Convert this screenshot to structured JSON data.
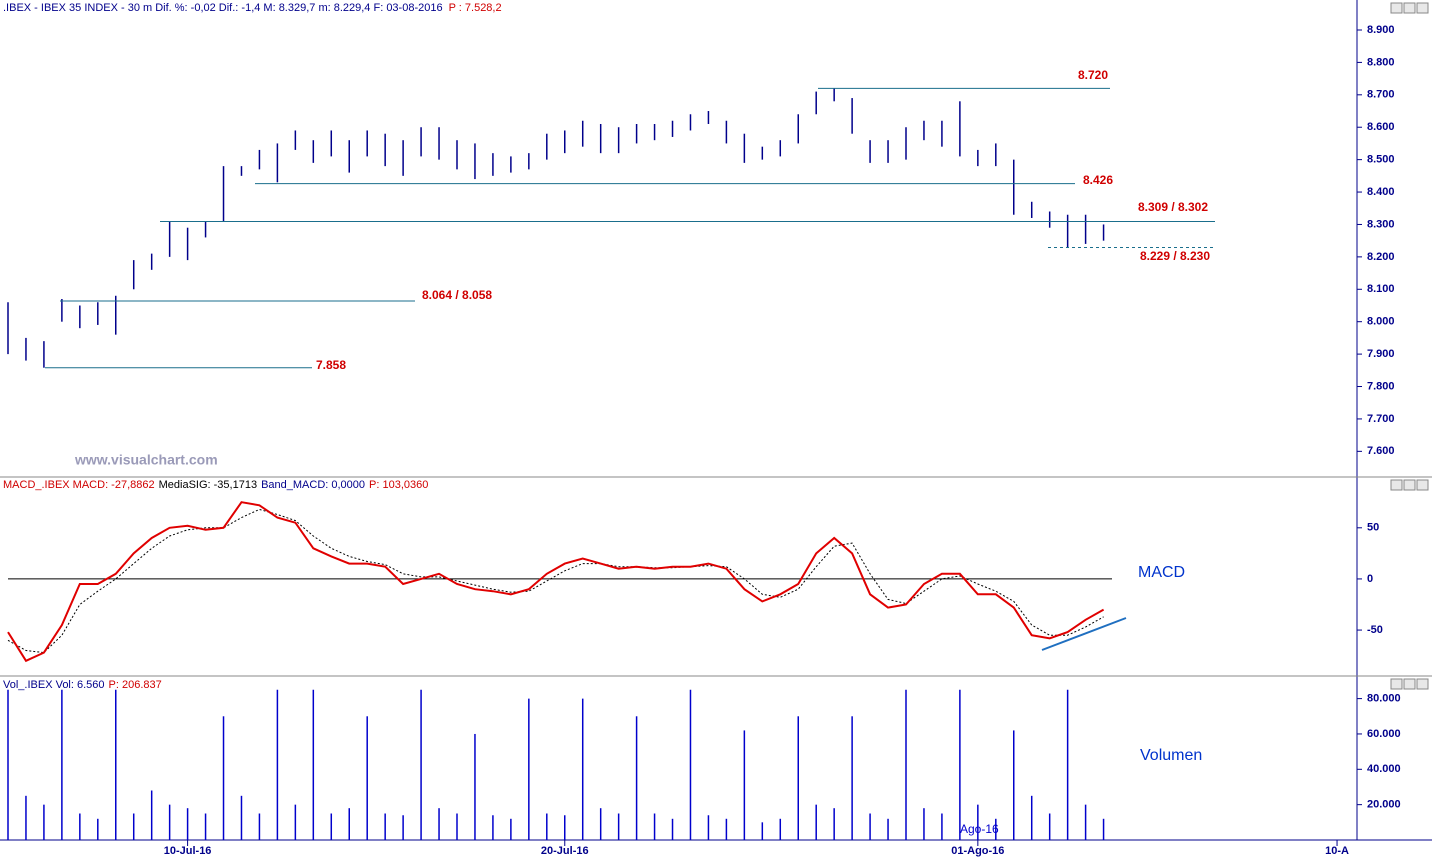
{
  "chart_data": [
    {
      "type": "ohlc",
      "title": ".IBEX - IBEX 35 INDEX -  30 m  Dif. %: -0,02  Dif.: -1,4  M: 8.329,7  m: 8.229,4  F: 03-08-2016",
      "title_extra": "P : 7.528,2",
      "watermark": "www.visualchart.com",
      "color": "#00008b",
      "high": [
        8060,
        7950,
        7940,
        8070,
        8050,
        8060,
        8080,
        8190,
        8210,
        8310,
        8290,
        8310,
        8480,
        8480,
        8530,
        8550,
        8590,
        8560,
        8590,
        8560,
        8590,
        8580,
        8560,
        8600,
        8600,
        8560,
        8550,
        8520,
        8510,
        8520,
        8580,
        8590,
        8620,
        8610,
        8600,
        8610,
        8610,
        8620,
        8640,
        8650,
        8620,
        8580,
        8540,
        8560,
        8640,
        8710,
        8720,
        8690,
        8560,
        8560,
        8600,
        8620,
        8620,
        8680,
        8530,
        8550,
        8500,
        8370,
        8340,
        8330,
        8330,
        8300,
        null,
        null,
        null,
        null,
        null,
        null,
        null,
        null,
        null,
        null,
        null,
        null,
        null
      ],
      "low": [
        7900,
        7880,
        7858,
        8000,
        7980,
        7990,
        7960,
        8100,
        8160,
        8200,
        8190,
        8260,
        8310,
        8450,
        8470,
        8430,
        8530,
        8490,
        8510,
        8460,
        8510,
        8480,
        8450,
        8510,
        8500,
        8470,
        8440,
        8450,
        8460,
        8470,
        8500,
        8520,
        8540,
        8520,
        8520,
        8550,
        8560,
        8570,
        8590,
        8610,
        8550,
        8490,
        8500,
        8510,
        8550,
        8640,
        8680,
        8580,
        8490,
        8490,
        8500,
        8560,
        8540,
        8510,
        8480,
        8480,
        8330,
        8320,
        8290,
        8230,
        8240,
        8250,
        null,
        null,
        null,
        null,
        null,
        null,
        null,
        null,
        null,
        null,
        null,
        null,
        null
      ],
      "ylim": [
        7527,
        8937
      ],
      "yticks": [
        {
          "value": 7600,
          "label": "7.600"
        },
        {
          "value": 7700,
          "label": "7.700"
        },
        {
          "value": 7800,
          "label": "7.800"
        },
        {
          "value": 7900,
          "label": "7.900"
        },
        {
          "value": 8000,
          "label": "8.000"
        },
        {
          "value": 8100,
          "label": "8.100"
        },
        {
          "value": 8200,
          "label": "8.200"
        },
        {
          "value": 8300,
          "label": "8.300"
        },
        {
          "value": 8400,
          "label": "8.400"
        },
        {
          "value": 8500,
          "label": "8.500"
        },
        {
          "value": 8600,
          "label": "8.600"
        },
        {
          "value": 8700,
          "label": "8.700"
        },
        {
          "value": 8800,
          "label": "8.800"
        },
        {
          "value": 8900,
          "label": "8.900"
        }
      ],
      "levels": [
        {
          "value": 8720,
          "label": "8.720"
        },
        {
          "value": 8426,
          "label": "8.426"
        },
        {
          "value": 8309,
          "label": "8.309 / 8.302"
        },
        {
          "value": 8229,
          "label": "8.229 / 8.230",
          "dashed": true
        },
        {
          "value": 8064,
          "label": "8.064 / 8.058"
        },
        {
          "value": 7858,
          "label": "7.858"
        }
      ],
      "level_color": "#1a6e8c"
    },
    {
      "type": "line",
      "header": [
        "MACD_.IBEX MACD: -27,8862",
        "MediaSIG: -35,1713",
        "Band_MACD: 0,0000",
        "P: 103,0360"
      ],
      "header_colors": [
        "#d00000",
        "#000000",
        "#00008b",
        "#d00000"
      ],
      "label": "MACD",
      "series": [
        {
          "color": "#e00000",
          "values": [
            -52,
            -80,
            -72,
            -45,
            -5,
            -5,
            5,
            25,
            40,
            50,
            52,
            48,
            50,
            75,
            72,
            60,
            55,
            30,
            22,
            15,
            15,
            12,
            -5,
            0,
            5,
            -5,
            -10,
            -12,
            -15,
            -10,
            5,
            15,
            20,
            15,
            10,
            12,
            10,
            12,
            12,
            15,
            10,
            -10,
            -22,
            -15,
            -5,
            25,
            40,
            25,
            -15,
            -28,
            -25,
            -5,
            5,
            5,
            -15,
            -15,
            -28,
            -55,
            -58,
            -52,
            -40,
            -30,
            null,
            null,
            null,
            null,
            null,
            null,
            null,
            null,
            null,
            null,
            null,
            null,
            null
          ]
        },
        {
          "color": "#000000",
          "dashed": true,
          "values": [
            -60,
            -70,
            -72,
            -55,
            -25,
            -12,
            0,
            15,
            30,
            42,
            48,
            50,
            50,
            60,
            68,
            63,
            57,
            42,
            30,
            22,
            17,
            14,
            5,
            2,
            2,
            -2,
            -6,
            -10,
            -13,
            -12,
            -2,
            8,
            15,
            15,
            12,
            12,
            11,
            11,
            12,
            13,
            12,
            0,
            -15,
            -18,
            -10,
            12,
            32,
            35,
            5,
            -20,
            -24,
            -12,
            0,
            3,
            -5,
            -12,
            -22,
            -45,
            -55,
            -55,
            -47,
            -37,
            null,
            null,
            null,
            null,
            null,
            null,
            null,
            null,
            null,
            null,
            null,
            null,
            null
          ]
        }
      ],
      "ylim": [
        -91,
        85
      ],
      "yticks": [
        -50,
        0,
        50
      ],
      "zero_line": 0
    },
    {
      "type": "bar",
      "header": [
        "Vol_.IBEX Vol: 6.560",
        "P: 206.837"
      ],
      "header_colors": [
        "#00008b",
        "#d00000"
      ],
      "label": "Volumen",
      "annotation": "Ago-16",
      "color": "#0000cc",
      "values": [
        85000,
        25000,
        20000,
        85000,
        15000,
        12000,
        85000,
        15000,
        28000,
        20000,
        18000,
        15000,
        70000,
        25000,
        15000,
        85000,
        20000,
        85000,
        15000,
        18000,
        70000,
        15000,
        14000,
        85000,
        18000,
        15000,
        60000,
        14000,
        12000,
        80000,
        15000,
        14000,
        80000,
        18000,
        15000,
        70000,
        15000,
        12000,
        85000,
        14000,
        12000,
        62000,
        10000,
        12000,
        70000,
        20000,
        18000,
        70000,
        15000,
        12000,
        85000,
        18000,
        15000,
        85000,
        20000,
        12000,
        62000,
        25000,
        15000,
        85000,
        20000,
        12000,
        null,
        null,
        null,
        null,
        null,
        null,
        null,
        null,
        null,
        null,
        null,
        null,
        null
      ],
      "ylim": [
        0,
        86000
      ],
      "yticks": [
        {
          "value": 20000,
          "label": "20.000"
        },
        {
          "value": 40000,
          "label": "40.000"
        },
        {
          "value": 60000,
          "label": "60.000"
        },
        {
          "value": 80000,
          "label": "80.000"
        }
      ],
      "categories": [
        null,
        null,
        null,
        null,
        null,
        null,
        null,
        null,
        null,
        null,
        "10-Jul-16",
        null,
        null,
        null,
        null,
        null,
        null,
        null,
        null,
        null,
        null,
        null,
        null,
        null,
        null,
        null,
        null,
        null,
        null,
        null,
        null,
        "20-Jul-16",
        null,
        null,
        null,
        null,
        null,
        null,
        null,
        null,
        null,
        null,
        null,
        null,
        null,
        null,
        null,
        null,
        null,
        null,
        null,
        null,
        null,
        null,
        "01-Ago-16",
        null,
        null,
        null,
        null,
        null,
        null,
        null,
        null,
        null,
        null,
        null,
        null,
        null,
        null,
        null,
        null,
        null,
        null,
        null,
        "10-A"
      ]
    }
  ]
}
